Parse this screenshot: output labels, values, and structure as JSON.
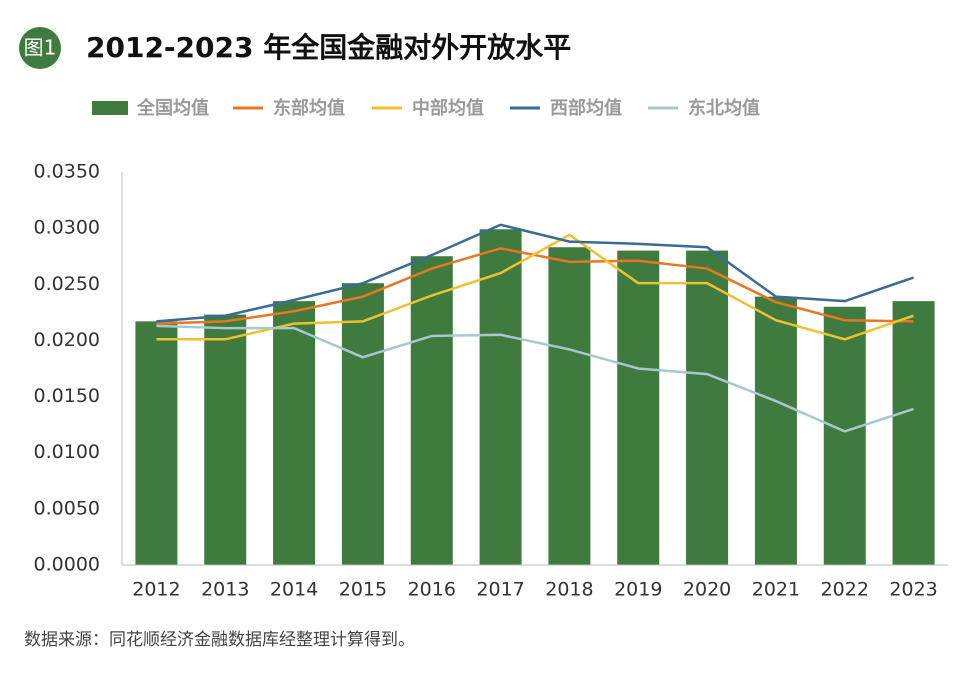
{
  "badge": "图1",
  "source": "数据来源：同花顺经济金融数据库经整理计算得到。",
  "chart_data": {
    "type": "bar",
    "title": "2012-2023 年全国金融对外开放水平",
    "categories": [
      "2012",
      "2013",
      "2014",
      "2015",
      "2016",
      "2017",
      "2018",
      "2019",
      "2020",
      "2021",
      "2022",
      "2023"
    ],
    "ylim": [
      0,
      0.035
    ],
    "yticks": [
      {
        "value": 0,
        "label": "0.0000"
      },
      {
        "value": 0.005,
        "label": "0.0050"
      },
      {
        "value": 0.01,
        "label": "0.0100"
      },
      {
        "value": 0.015,
        "label": "0.0150"
      },
      {
        "value": 0.02,
        "label": "0.0200"
      },
      {
        "value": 0.025,
        "label": "0.0250"
      },
      {
        "value": 0.03,
        "label": "0.0300"
      },
      {
        "value": 0.035,
        "label": "0.0350"
      }
    ],
    "grid": false,
    "series": [
      {
        "name": "全国均值",
        "type": "bar",
        "color": "#3f7a3f",
        "values": [
          0.0217,
          0.0223,
          0.0235,
          0.0251,
          0.0275,
          0.0299,
          0.0283,
          0.028,
          0.028,
          0.0239,
          0.023,
          0.0235
        ]
      },
      {
        "name": "东部均值",
        "type": "line",
        "color": "#e87722",
        "values": [
          0.0215,
          0.0217,
          0.0226,
          0.0239,
          0.0264,
          0.0282,
          0.027,
          0.0271,
          0.0264,
          0.0234,
          0.0218,
          0.0217
        ]
      },
      {
        "name": "中部均值",
        "type": "line",
        "color": "#f0c030",
        "values": [
          0.0201,
          0.0201,
          0.0215,
          0.0217,
          0.024,
          0.026,
          0.0294,
          0.0251,
          0.0251,
          0.0218,
          0.0201,
          0.0222
        ]
      },
      {
        "name": "西部均值",
        "type": "line",
        "color": "#3a6a9a",
        "values": [
          0.0217,
          0.0222,
          0.0236,
          0.0251,
          0.0276,
          0.0303,
          0.0288,
          0.0286,
          0.0283,
          0.0239,
          0.0235,
          0.0256
        ]
      },
      {
        "name": "东北均值",
        "type": "line",
        "color": "#a8c8d0",
        "values": [
          0.0213,
          0.0211,
          0.0211,
          0.0185,
          0.0204,
          0.0205,
          0.0192,
          0.0175,
          0.017,
          0.0146,
          0.0119,
          0.0139
        ]
      }
    ]
  }
}
